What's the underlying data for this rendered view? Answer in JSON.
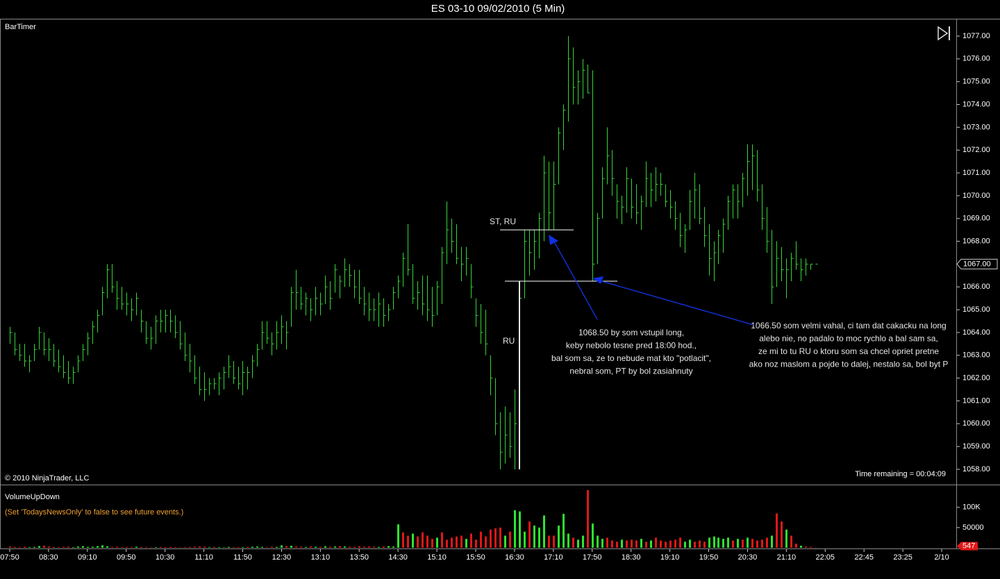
{
  "header": {
    "title": "ES 03-10  09/02/2010 (5 Min)"
  },
  "chart_data": [
    {
      "type": "hlc",
      "title": "BarTimer",
      "copyright": "© 2010 NinjaTrader, LLC",
      "timer": "Time remaining = 00:04:09",
      "color": "#3ad43a",
      "high": [
        1064.25,
        1064.0,
        1063.5,
        1063.5,
        1063.0,
        1063.5,
        1064.25,
        1064.0,
        1063.75,
        1063.5,
        1063.25,
        1063.0,
        1062.75,
        1062.5,
        1063.0,
        1063.5,
        1064.0,
        1064.5,
        1065.0,
        1066.0,
        1067.0,
        1067.0,
        1066.25,
        1066.0,
        1065.75,
        1065.5,
        1065.75,
        1065.0,
        1064.5,
        1064.25,
        1064.75,
        1065.0,
        1065.0,
        1065.0,
        1064.75,
        1064.5,
        1064.0,
        1063.5,
        1063.0,
        1062.5,
        1062.25,
        1062.0,
        1062.0,
        1062.25,
        1062.5,
        1063.0,
        1062.75,
        1062.5,
        1062.75,
        1062.5,
        1063.0,
        1063.5,
        1064.5,
        1064.5,
        1064.0,
        1064.5,
        1064.75,
        1064.5,
        1066.0,
        1066.75,
        1066.0,
        1065.75,
        1065.5,
        1066.0,
        1065.75,
        1066.5,
        1066.25,
        1067.0,
        1066.5,
        1067.25,
        1067.0,
        1066.75,
        1066.75,
        1066.0,
        1065.75,
        1065.5,
        1065.75,
        1065.5,
        1065.25,
        1066.0,
        1066.5,
        1067.5,
        1068.75,
        1067.0,
        1066.25,
        1066.5,
        1066.5,
        1066.0,
        1066.25,
        1067.75,
        1069.75,
        1069.0,
        1068.75,
        1067.75,
        1067.75,
        1067.0,
        1065.5,
        1065.25,
        1065.0,
        1063.0,
        1062.0,
        1060.5,
        1060.75,
        1060.5,
        1061.5,
        1066.25,
        1068.5,
        1068.5,
        1068.5,
        1069.25,
        1071.75,
        1071.5,
        1071.5,
        1073.0,
        1074.0,
        1077.0,
        1076.5,
        1075.5,
        1076.0,
        1075.75,
        1075.5,
        1069.25,
        1071.25,
        1073.0,
        1072.0,
        1070.5,
        1070.0,
        1071.25,
        1070.75,
        1070.5,
        1070.0,
        1071.5,
        1071.0,
        1071.25,
        1071.0,
        1070.5,
        1070.25,
        1069.75,
        1069.25,
        1068.75,
        1070.25,
        1071.0,
        1070.5,
        1069.5,
        1068.75,
        1068.0,
        1068.5,
        1069.0,
        1070.0,
        1070.5,
        1070.5,
        1071.0,
        1072.25,
        1072.25,
        1072.0,
        1070.5,
        1069.5,
        1068.5,
        1068.0,
        1067.75,
        1067.25,
        1067.5,
        1068.0,
        1067.25,
        1067.25,
        1067.0,
        1067.0
      ],
      "low": [
        1063.5,
        1063.0,
        1062.75,
        1062.5,
        1062.25,
        1062.75,
        1063.25,
        1063.0,
        1062.75,
        1062.5,
        1062.25,
        1062.0,
        1061.75,
        1061.75,
        1062.25,
        1062.75,
        1063.0,
        1063.5,
        1064.0,
        1064.75,
        1065.5,
        1065.75,
        1065.0,
        1065.0,
        1064.75,
        1064.5,
        1064.75,
        1064.0,
        1063.5,
        1063.25,
        1063.5,
        1064.0,
        1064.0,
        1064.0,
        1063.75,
        1063.25,
        1062.75,
        1062.25,
        1061.75,
        1061.25,
        1061.0,
        1061.25,
        1061.5,
        1061.25,
        1061.5,
        1062.0,
        1061.75,
        1061.5,
        1061.25,
        1061.5,
        1062.0,
        1062.5,
        1063.25,
        1063.5,
        1063.0,
        1063.25,
        1063.5,
        1063.25,
        1064.25,
        1065.0,
        1065.0,
        1064.75,
        1064.5,
        1064.75,
        1064.75,
        1065.25,
        1065.0,
        1065.75,
        1065.5,
        1066.0,
        1066.0,
        1065.5,
        1065.25,
        1064.75,
        1064.5,
        1064.5,
        1064.25,
        1064.25,
        1064.5,
        1065.0,
        1065.5,
        1066.0,
        1066.5,
        1065.25,
        1065.0,
        1064.75,
        1064.5,
        1064.25,
        1064.75,
        1065.25,
        1067.0,
        1067.5,
        1067.0,
        1066.25,
        1066.5,
        1065.5,
        1064.25,
        1063.5,
        1063.0,
        1061.25,
        1059.5,
        1058.0,
        1058.25,
        1058.5,
        1058.0,
        1064.5,
        1065.5,
        1066.5,
        1066.75,
        1067.25,
        1068.0,
        1068.5,
        1068.5,
        1070.5,
        1072.0,
        1073.25,
        1074.0,
        1074.0,
        1074.25,
        1074.5,
        1066.25,
        1067.0,
        1069.0,
        1070.5,
        1070.0,
        1069.0,
        1068.75,
        1069.25,
        1069.0,
        1068.75,
        1068.5,
        1069.5,
        1069.5,
        1069.75,
        1070.0,
        1069.5,
        1069.0,
        1068.5,
        1067.75,
        1067.5,
        1068.5,
        1069.0,
        1068.75,
        1067.75,
        1066.5,
        1066.25,
        1067.0,
        1067.5,
        1068.5,
        1069.0,
        1069.0,
        1069.5,
        1070.0,
        1070.25,
        1069.75,
        1068.5,
        1067.5,
        1065.25,
        1066.0,
        1066.25,
        1065.5,
        1066.25,
        1066.75,
        1066.25,
        1066.5,
        1066.75,
        1067.0
      ],
      "close": [
        1064.0,
        1063.25,
        1063.0,
        1062.75,
        1062.75,
        1063.25,
        1064.0,
        1063.25,
        1063.25,
        1062.75,
        1062.5,
        1062.25,
        1062.0,
        1062.25,
        1062.75,
        1063.25,
        1063.75,
        1064.25,
        1064.75,
        1065.75,
        1066.75,
        1066.0,
        1065.5,
        1065.25,
        1065.25,
        1065.0,
        1065.5,
        1064.5,
        1063.75,
        1063.75,
        1064.5,
        1064.5,
        1064.75,
        1064.5,
        1064.0,
        1063.5,
        1063.0,
        1062.75,
        1062.0,
        1061.5,
        1061.5,
        1061.75,
        1061.75,
        1062.0,
        1062.25,
        1062.5,
        1062.0,
        1061.75,
        1062.25,
        1062.25,
        1062.75,
        1063.25,
        1064.0,
        1063.75,
        1063.5,
        1064.0,
        1064.25,
        1064.0,
        1065.75,
        1065.75,
        1065.25,
        1065.5,
        1065.0,
        1065.5,
        1065.25,
        1066.0,
        1065.5,
        1066.75,
        1066.25,
        1066.75,
        1066.5,
        1066.0,
        1065.5,
        1065.25,
        1065.0,
        1065.0,
        1065.25,
        1064.75,
        1065.0,
        1065.75,
        1066.25,
        1067.25,
        1066.75,
        1065.5,
        1065.75,
        1065.25,
        1065.0,
        1064.75,
        1066.0,
        1067.5,
        1068.5,
        1068.0,
        1067.25,
        1067.0,
        1067.25,
        1066.0,
        1064.75,
        1064.0,
        1063.5,
        1062.0,
        1060.0,
        1058.75,
        1059.5,
        1059.0,
        1060.0,
        1065.5,
        1068.0,
        1067.5,
        1068.0,
        1069.0,
        1071.0,
        1069.25,
        1070.5,
        1072.75,
        1073.75,
        1076.0,
        1074.75,
        1075.0,
        1075.5,
        1074.5,
        1067.0,
        1069.0,
        1070.75,
        1071.75,
        1070.75,
        1069.75,
        1069.5,
        1070.75,
        1069.5,
        1069.25,
        1069.75,
        1070.75,
        1070.25,
        1070.5,
        1070.5,
        1069.75,
        1069.5,
        1069.0,
        1068.25,
        1068.5,
        1069.75,
        1070.25,
        1069.0,
        1068.25,
        1067.25,
        1067.5,
        1068.25,
        1068.75,
        1069.75,
        1070.25,
        1069.75,
        1070.75,
        1071.5,
        1071.75,
        1070.25,
        1069.0,
        1068.0,
        1066.0,
        1067.25,
        1066.75,
        1066.75,
        1067.25,
        1067.0,
        1066.75,
        1067.0,
        1067.0,
        1067.0
      ],
      "last_close_label": "1067.00",
      "xlim": [
        -2,
        195
      ],
      "ylim": [
        1057.36,
        1077.73
      ],
      "yticks": [
        {
          "value": 1058,
          "label": "1058.00"
        },
        {
          "value": 1059,
          "label": "1059.00"
        },
        {
          "value": 1060,
          "label": "1060.00"
        },
        {
          "value": 1061,
          "label": "1061.00"
        },
        {
          "value": 1062,
          "label": "1062.00"
        },
        {
          "value": 1063,
          "label": "1063.00"
        },
        {
          "value": 1064,
          "label": "1064.00"
        },
        {
          "value": 1065,
          "label": "1065.00"
        },
        {
          "value": 1066,
          "label": "1066.00"
        },
        {
          "value": 1067,
          "label": "1067.00"
        },
        {
          "value": 1068,
          "label": "1068.00"
        },
        {
          "value": 1069,
          "label": "1069.00"
        },
        {
          "value": 1070,
          "label": "1070.00"
        },
        {
          "value": 1071,
          "label": "1071.00"
        },
        {
          "value": 1072,
          "label": "1072.00"
        },
        {
          "value": 1073,
          "label": "1073.00"
        },
        {
          "value": 1074,
          "label": "1074.00"
        },
        {
          "value": 1075,
          "label": "1075.00"
        },
        {
          "value": 1076,
          "label": "1076.00"
        },
        {
          "value": 1077,
          "label": "1077.00"
        }
      ],
      "levels": [
        1068.5,
        1066.25
      ],
      "ru_line": [
        1058,
        1066.25
      ],
      "annotations": {
        "st_ru": "ST, RU",
        "ru": "RU",
        "note1": [
          "1068.50 by som vstupil long,",
          "keby nebolo  tesne pred 18:00 hod.,",
          "bal som sa, ze to nebude mat kto \"potlacit\",",
          "nebral som, PT by bol zasiahnuty"
        ],
        "note2": [
          "1066.50 som velmi vahal, ci tam dat cakacku na long",
          "alebo nie, no padalo to moc rychlo a bal sam sa,",
          "ze mi to tu RU o ktoru som sa chcel opriet pretne",
          "ako noz maslom a pojde to dalej, nestalo sa, bol byt P"
        ]
      }
    },
    {
      "type": "bar",
      "title": "VolumeUpDown",
      "note": "(Set 'TodaysNewsOnly' to false to see future events.)",
      "up_color": "#2ee62e",
      "down_color": "#e01818",
      "values": [
        3000,
        2000,
        1500,
        2500,
        1500,
        2000,
        4000,
        5000,
        3000,
        2000,
        1500,
        2000,
        2500,
        1500,
        3000,
        4000,
        2000,
        2500,
        4000,
        6000,
        3500,
        2000,
        2500,
        1500,
        2000,
        1500,
        2500,
        2000,
        1500,
        1000,
        1500,
        2000,
        1500,
        2000,
        1500,
        1000,
        1500,
        2000,
        2500,
        3000,
        2500,
        1500,
        2000,
        1500,
        1000,
        2000,
        1500,
        1500,
        1500,
        2000,
        2500,
        3000,
        2000,
        1500,
        2500,
        2000,
        6000,
        4000,
        5000,
        3000,
        2500,
        2000,
        3000,
        2500,
        2000,
        3500,
        2500,
        3000,
        4000,
        3000,
        2500,
        2000,
        3500,
        2500,
        3000,
        2500,
        2000,
        3000,
        4000,
        3000,
        58000,
        38000,
        30000,
        35000,
        28000,
        38000,
        30000,
        22000,
        25000,
        38000,
        20000,
        25000,
        28000,
        30000,
        22000,
        35000,
        20000,
        40000,
        28000,
        45000,
        48000,
        50000,
        30000,
        40000,
        93000,
        90000,
        40000,
        65000,
        55000,
        50000,
        80000,
        30000,
        30000,
        55000,
        84000,
        35000,
        25000,
        20000,
        30000,
        143000,
        60000,
        30000,
        22000,
        25000,
        18000,
        15000,
        20000,
        18000,
        20000,
        18000,
        22000,
        15000,
        18000,
        25000,
        18000,
        15000,
        18000,
        20000,
        25000,
        15000,
        20000,
        15000,
        18000,
        15000,
        25000,
        28000,
        25000,
        22000,
        25000,
        18000,
        22000,
        20000,
        25000,
        22000,
        18000,
        20000,
        25000,
        30000,
        85000,
        65000,
        45000,
        30000,
        10000,
        5000,
        3000,
        2000,
        547
      ],
      "up": [
        false,
        false,
        false,
        false,
        true,
        true,
        true,
        false,
        false,
        false,
        false,
        false,
        false,
        true,
        true,
        true,
        true,
        true,
        true,
        true,
        true,
        false,
        false,
        false,
        false,
        false,
        true,
        false,
        false,
        false,
        true,
        false,
        false,
        false,
        false,
        false,
        false,
        false,
        false,
        false,
        false,
        true,
        false,
        true,
        true,
        true,
        false,
        false,
        true,
        false,
        true,
        true,
        true,
        false,
        false,
        true,
        true,
        false,
        true,
        false,
        false,
        true,
        false,
        true,
        false,
        true,
        false,
        true,
        false,
        true,
        false,
        false,
        false,
        false,
        false,
        false,
        true,
        false,
        true,
        true,
        true,
        false,
        false,
        true,
        false,
        false,
        false,
        false,
        true,
        false,
        false,
        false,
        false,
        false,
        true,
        false,
        false,
        false,
        false,
        false,
        false,
        false,
        true,
        false,
        true,
        true,
        true,
        false,
        true,
        true,
        true,
        false,
        false,
        true,
        true,
        true,
        false,
        true,
        true,
        false,
        true,
        true,
        true,
        false,
        false,
        false,
        true,
        false,
        false,
        false,
        true,
        false,
        true,
        false,
        false,
        false,
        false,
        false,
        false,
        true,
        true,
        false,
        false,
        false,
        true,
        true,
        true,
        true,
        true,
        false,
        true,
        false,
        true,
        false,
        false,
        false,
        false,
        true,
        false,
        false,
        true,
        false,
        false,
        true,
        false,
        false,
        false
      ],
      "xlim": [
        -2,
        195
      ],
      "ylim": [
        0,
        153000
      ],
      "yticks": [
        50000,
        {
          "value": 100000,
          "label": "100K"
        }
      ],
      "xticks": [
        {
          "value": 0,
          "label": "07:50"
        },
        {
          "value": 8,
          "label": "08:30"
        },
        {
          "value": 16,
          "label": "09:10"
        },
        {
          "value": 24,
          "label": "09:50"
        },
        {
          "value": 32,
          "label": "10:30"
        },
        {
          "value": 40,
          "label": "11:10"
        },
        {
          "value": 48,
          "label": "11:50"
        },
        {
          "value": 56,
          "label": "12:30"
        },
        {
          "value": 64,
          "label": "13:10"
        },
        {
          "value": 72,
          "label": "13:50"
        },
        {
          "value": 80,
          "label": "14:30"
        },
        {
          "value": 88,
          "label": "15:10"
        },
        {
          "value": 96,
          "label": "15:50"
        },
        {
          "value": 104,
          "label": "16:30"
        },
        {
          "value": 112,
          "label": "17:10"
        },
        {
          "value": 120,
          "label": "17:50"
        },
        {
          "value": 128,
          "label": "18:30"
        },
        {
          "value": 136,
          "label": "19:10"
        },
        {
          "value": 144,
          "label": "19:50"
        },
        {
          "value": 152,
          "label": "20:30"
        },
        {
          "value": 160,
          "label": "21:10"
        },
        {
          "value": 168,
          "label": "22:05"
        },
        {
          "value": 176,
          "label": "22:45"
        },
        {
          "value": 184,
          "label": "23:25"
        },
        {
          "value": 192,
          "label": "2/10"
        }
      ]
    }
  ]
}
